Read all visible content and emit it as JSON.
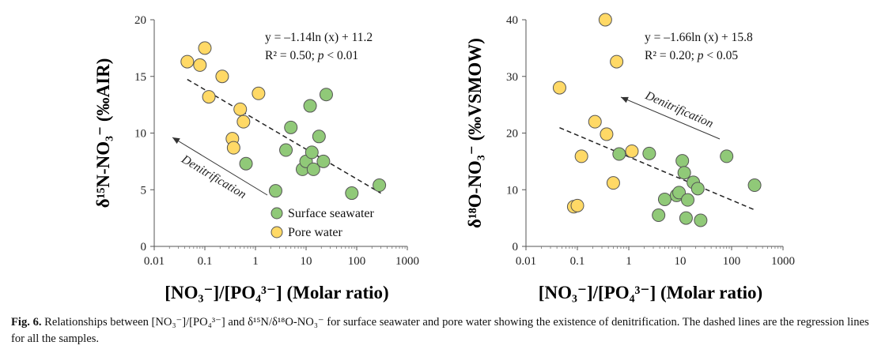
{
  "chart_data": [
    {
      "type": "scatter",
      "x_scale": "log",
      "xlim": [
        0.01,
        1000
      ],
      "ylim": [
        0,
        20
      ],
      "x_ticks": [
        "0.01",
        "0.1",
        "1",
        "10",
        "100",
        "1000"
      ],
      "y_ticks": [
        "0",
        "5",
        "10",
        "15",
        "20"
      ],
      "xlabel": "[NO₃⁻]/[PO₄³⁻] (Molar ratio)",
      "ylabel": "δ¹⁵N-NO₃⁻ (‰AIR)",
      "equation": "y = –1.14ln (x) + 11.2",
      "stats_prefix": "R² = 0.50; ",
      "stats_p": "p",
      "stats_suffix": " < 0.01",
      "annotation": "Denitrification",
      "legend_position": "bottom-right",
      "regression": {
        "slope": -1.14,
        "intercept": 11.2,
        "x_range": [
          0.045,
          300
        ]
      },
      "series": [
        {
          "name": "Surface seawater",
          "color": "#90c978",
          "points": [
            [
              0.65,
              7.3
            ],
            [
              2.5,
              4.9
            ],
            [
              4,
              8.5
            ],
            [
              5,
              10.5
            ],
            [
              8.5,
              6.8
            ],
            [
              10,
              7.5
            ],
            [
              12,
              12.4
            ],
            [
              13,
              8.3
            ],
            [
              14,
              6.8
            ],
            [
              18,
              9.7
            ],
            [
              22,
              7.5
            ],
            [
              25,
              13.4
            ],
            [
              80,
              4.7
            ],
            [
              280,
              5.4
            ]
          ]
        },
        {
          "name": "Pore water",
          "color": "#ffd966",
          "points": [
            [
              0.045,
              16.3
            ],
            [
              0.08,
              16.0
            ],
            [
              0.1,
              17.5
            ],
            [
              0.12,
              13.2
            ],
            [
              0.22,
              15.0
            ],
            [
              0.35,
              9.5
            ],
            [
              0.37,
              8.7
            ],
            [
              0.5,
              12.1
            ],
            [
              0.58,
              11.0
            ],
            [
              1.15,
              13.5
            ]
          ]
        }
      ]
    },
    {
      "type": "scatter",
      "x_scale": "log",
      "xlim": [
        0.01,
        1000
      ],
      "ylim": [
        0,
        40
      ],
      "x_ticks": [
        "0.01",
        "0.1",
        "1",
        "10",
        "100",
        "1000"
      ],
      "y_ticks": [
        "0",
        "10",
        "20",
        "30",
        "40"
      ],
      "xlabel": "[NO₃⁻]/[PO₄³⁻] (Molar ratio)",
      "ylabel": "δ¹⁸O-NO₃⁻ (‰VSMOW)",
      "equation": "y = –1.66ln (x) + 15.8",
      "stats_prefix": "R² = 0.20; ",
      "stats_p": "p",
      "stats_suffix": " < 0.05",
      "annotation": "Denitrification",
      "regression": {
        "slope": -1.66,
        "intercept": 15.8,
        "x_range": [
          0.045,
          300
        ]
      },
      "series": [
        {
          "name": "Surface seawater",
          "color": "#90c978",
          "points": [
            [
              0.65,
              16.3
            ],
            [
              2.5,
              16.4
            ],
            [
              3.8,
              5.5
            ],
            [
              5,
              8.3
            ],
            [
              8.5,
              9.0
            ],
            [
              9.5,
              9.5
            ],
            [
              11,
              15.1
            ],
            [
              12,
              13.0
            ],
            [
              13,
              5.0
            ],
            [
              14,
              8.2
            ],
            [
              18,
              11.3
            ],
            [
              22,
              10.2
            ],
            [
              25,
              4.6
            ],
            [
              80,
              15.9
            ],
            [
              280,
              10.8
            ]
          ]
        },
        {
          "name": "Pore water",
          "color": "#ffd966",
          "points": [
            [
              0.045,
              28.0
            ],
            [
              0.085,
              7.0
            ],
            [
              0.1,
              7.2
            ],
            [
              0.12,
              15.9
            ],
            [
              0.22,
              22.0
            ],
            [
              0.35,
              40.0
            ],
            [
              0.37,
              19.8
            ],
            [
              0.5,
              11.2
            ],
            [
              0.58,
              32.6
            ],
            [
              1.15,
              16.8
            ]
          ]
        }
      ]
    }
  ],
  "caption": {
    "label": "Fig. 6.",
    "text": " Relationships between [NO₃⁻]/[PO₄³⁻] and δ¹⁵N/δ¹⁸O-NO₃⁻ for surface seawater and pore water showing the existence of denitrification. The dashed lines are the regression lines for all the samples."
  }
}
